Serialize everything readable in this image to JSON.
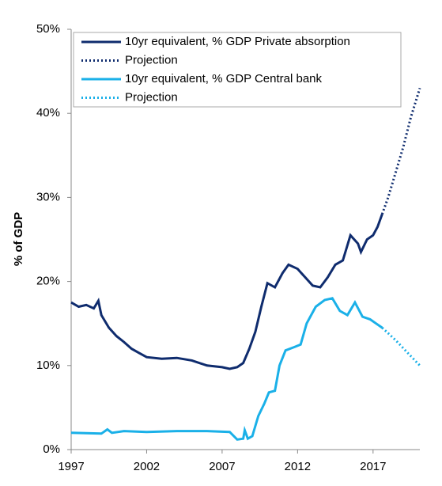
{
  "chart_data": {
    "type": "line",
    "y_label": "% of GDP",
    "xlim": [
      1997,
      2020.1
    ],
    "xticks": [
      1997,
      2002,
      2007,
      2012,
      2017
    ],
    "ylim": [
      0,
      50
    ],
    "yticks": [
      {
        "value": 0,
        "label": "0%"
      },
      {
        "value": 10,
        "label": "10%"
      },
      {
        "value": 20,
        "label": "20%"
      },
      {
        "value": 30,
        "label": "30%"
      },
      {
        "value": 40,
        "label": "40%"
      },
      {
        "value": 50,
        "label": "50%"
      }
    ],
    "legend": "upper left",
    "series": [
      {
        "name": "10yr equivalent, % GDP Private absorption",
        "color": "#0f2c6e",
        "style": "solid",
        "x": [
          1997,
          1997.5,
          1998,
          1998.5,
          1998.8,
          1999,
          1999.5,
          2000,
          2000.5,
          2001,
          2001.5,
          2002,
          2003,
          2004,
          2005,
          2006,
          2007,
          2007.5,
          2008,
          2008.4,
          2008.8,
          2009.2,
          2009.6,
          2010,
          2010.5,
          2011,
          2011.4,
          2012,
          2012.5,
          2013,
          2013.5,
          2014,
          2014.5,
          2015,
          2015.5,
          2016,
          2016.2,
          2016.6,
          2017,
          2017.3,
          2017.6
        ],
        "values": [
          17.5,
          17,
          17.2,
          16.8,
          17.7,
          16,
          14.5,
          13.5,
          12.8,
          12,
          11.5,
          11,
          10.8,
          10.9,
          10.6,
          10,
          9.8,
          9.6,
          9.8,
          10.3,
          12,
          14,
          17,
          19.8,
          19.3,
          21,
          22,
          21.5,
          20.5,
          19.5,
          19.3,
          20.5,
          22,
          22.5,
          25.5,
          24.5,
          23.5,
          25,
          25.5,
          26.5,
          28
        ]
      },
      {
        "name": "Projection",
        "color": "#0f2c6e",
        "style": "dotted",
        "x": [
          2017.6,
          2018,
          2018.5,
          2019,
          2019.5,
          2020.1
        ],
        "values": [
          28,
          30,
          33,
          36,
          39.5,
          43
        ]
      },
      {
        "name": "10yr equivalent, % GDP Central bank",
        "color": "#1ab0e8",
        "style": "solid",
        "x": [
          1997,
          1999,
          1999.4,
          1999.7,
          2000.5,
          2002,
          2004,
          2006,
          2007.5,
          2008,
          2008.4,
          2008.5,
          2008.7,
          2009,
          2009.4,
          2009.8,
          2010.1,
          2010.5,
          2010.8,
          2011.2,
          2011.8,
          2012.2,
          2012.6,
          2013.2,
          2013.8,
          2014.3,
          2014.8,
          2015.3,
          2015.8,
          2016.3,
          2016.8,
          2017.2,
          2017.6
        ],
        "values": [
          2,
          1.9,
          2.4,
          2,
          2.2,
          2.1,
          2.2,
          2.2,
          2.1,
          1.2,
          1.3,
          2.3,
          1.3,
          1.6,
          4,
          5.5,
          6.8,
          7,
          10,
          11.8,
          12.2,
          12.5,
          15,
          17,
          17.8,
          18,
          16.5,
          16,
          17.5,
          15.8,
          15.5,
          15,
          14.5
        ]
      },
      {
        "name": "Projection",
        "color": "#1ab0e8",
        "style": "dotted",
        "x": [
          2017.6,
          2018.5,
          2019.3,
          2020.1
        ],
        "values": [
          14.5,
          13,
          11.5,
          10
        ]
      }
    ]
  }
}
